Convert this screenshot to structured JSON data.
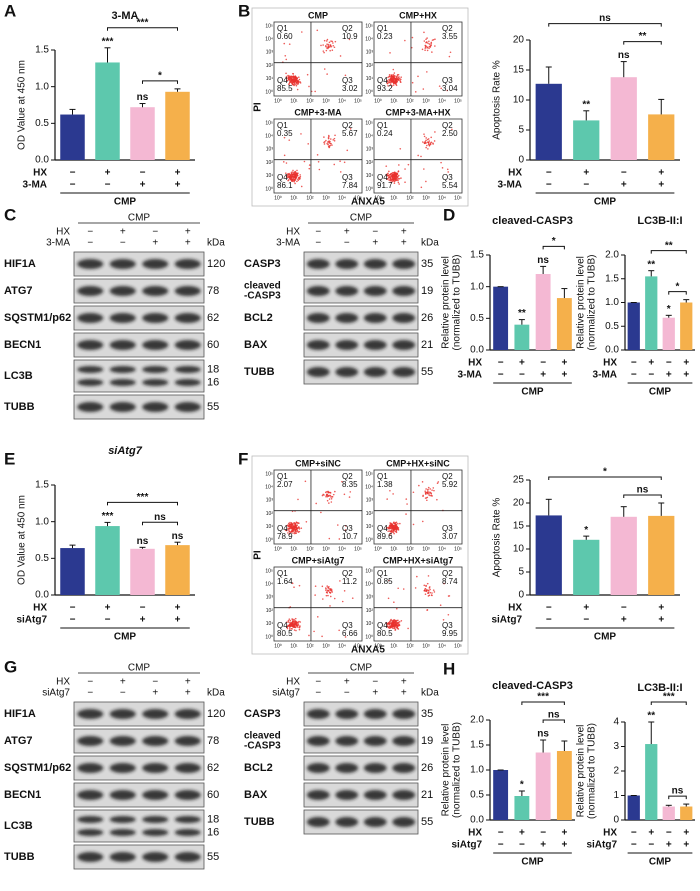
{
  "panel_labels": [
    "A",
    "B",
    "C",
    "D",
    "E",
    "F",
    "G",
    "H"
  ],
  "chart_data": [
    {
      "type": "bar",
      "title": "3-MA",
      "y_label": [
        "OD Value at 450 nm"
      ],
      "ylim": [
        0,
        1.5
      ],
      "yticks": [
        {
          "value": 0,
          "label": "0.0"
        },
        0.5,
        {
          "value": 1,
          "label": "1.0"
        },
        1.5
      ],
      "colors": [
        "#2b3990",
        "#5dc8ad",
        "#f4b8d3",
        "#f5b04b"
      ],
      "values": [
        0.62,
        1.33,
        0.72,
        0.93
      ],
      "errors": [
        0.07,
        0.2,
        0.05,
        0.04
      ],
      "bar_annotations": [
        null,
        "***",
        "ns",
        null
      ],
      "comparisons": [
        {
          "from": 2,
          "to": 3,
          "label": "*"
        },
        {
          "from": 1,
          "to": 3,
          "label": "***"
        }
      ],
      "conditions": [
        {
          "name": "HX",
          "signs": [
            "−",
            "+",
            "−",
            "+"
          ]
        },
        {
          "name": "3-MA",
          "signs": [
            "−",
            "−",
            "+",
            "+"
          ]
        }
      ],
      "group": "CMP"
    },
    {
      "type": "bar",
      "title": null,
      "y_label": [
        "Apoptosis Rate %"
      ],
      "ylim": [
        0,
        20
      ],
      "yticks": [
        0,
        5,
        10,
        15,
        20
      ],
      "colors": [
        "#2b3990",
        "#5dc8ad",
        "#f4b8d3",
        "#f5b04b"
      ],
      "values": [
        12.7,
        6.6,
        13.8,
        7.6
      ],
      "errors": [
        2.8,
        1.6,
        2.6,
        2.5
      ],
      "bar_annotations": [
        null,
        "**",
        "ns",
        null
      ],
      "comparisons": [
        {
          "from": 2,
          "to": 3,
          "label": "**"
        },
        {
          "from": 0,
          "to": 3,
          "label": "ns"
        }
      ],
      "conditions": [
        {
          "name": "HX",
          "signs": [
            "−",
            "+",
            "−",
            "+"
          ]
        },
        {
          "name": "3-MA",
          "signs": [
            "−",
            "−",
            "+",
            "+"
          ]
        }
      ],
      "group": "CMP"
    },
    {
      "type": "bar",
      "title": "cleaved-CASP3",
      "y_label": [
        "Relative protein level",
        "(normalized to TUBB)"
      ],
      "ylim": [
        0,
        1.5
      ],
      "yticks": [
        {
          "value": 0,
          "label": "0.0"
        },
        0.5,
        {
          "value": 1,
          "label": "1.0"
        },
        1.5
      ],
      "colors": [
        "#2b3990",
        "#5dc8ad",
        "#f4b8d3",
        "#f5b04b"
      ],
      "values": [
        1.0,
        0.4,
        1.2,
        0.82
      ],
      "errors": [
        0,
        0.08,
        0.12,
        0.15
      ],
      "bar_annotations": [
        null,
        "**",
        "ns",
        null
      ],
      "comparisons": [
        {
          "from": 2,
          "to": 3,
          "label": "*"
        }
      ],
      "conditions": [
        {
          "name": "HX",
          "signs": [
            "−",
            "+",
            "−",
            "+"
          ]
        },
        {
          "name": "3-MA",
          "signs": [
            "−",
            "−",
            "+",
            "+"
          ]
        }
      ],
      "group": "CMP"
    },
    {
      "type": "bar",
      "title": "LC3B-II:I",
      "y_label": [
        "Relative protein level",
        "(normalized to TUBB)"
      ],
      "ylim": [
        0,
        2
      ],
      "yticks": [
        {
          "value": 0,
          "label": "0.0"
        },
        0.5,
        {
          "value": 1,
          "label": "1.0"
        },
        1.5,
        {
          "value": 2,
          "label": "2.0"
        }
      ],
      "colors": [
        "#2b3990",
        "#5dc8ad",
        "#f4b8d3",
        "#f5b04b"
      ],
      "values": [
        1.0,
        1.55,
        0.68,
        1.0
      ],
      "errors": [
        0,
        0.12,
        0.05,
        0.06
      ],
      "bar_annotations": [
        null,
        "**",
        "*",
        null
      ],
      "comparisons": [
        {
          "from": 2,
          "to": 3,
          "label": "*"
        },
        {
          "from": 1,
          "to": 3,
          "label": "**"
        }
      ],
      "conditions": [
        {
          "name": "HX",
          "signs": [
            "−",
            "+",
            "−",
            "+"
          ]
        },
        {
          "name": "3-MA",
          "signs": [
            "−",
            "−",
            "+",
            "+"
          ]
        }
      ],
      "group": "CMP"
    },
    {
      "type": "bar",
      "title": "siAtg7",
      "y_label": [
        "OD Value at 450 nm"
      ],
      "ylim": [
        0,
        1.5
      ],
      "yticks": [
        {
          "value": 0,
          "label": "0.0"
        },
        0.5,
        {
          "value": 1,
          "label": "1.0"
        },
        1.5
      ],
      "colors": [
        "#2b3990",
        "#5dc8ad",
        "#f4b8d3",
        "#f5b04b"
      ],
      "values": [
        0.64,
        0.94,
        0.63,
        0.68
      ],
      "errors": [
        0.04,
        0.05,
        0.02,
        0.04
      ],
      "bar_annotations": [
        null,
        "***",
        "ns",
        "ns"
      ],
      "comparisons": [
        {
          "from": 2,
          "to": 3,
          "label": "ns"
        },
        {
          "from": 1,
          "to": 3,
          "label": "***"
        }
      ],
      "conditions": [
        {
          "name": "HX",
          "signs": [
            "−",
            "+",
            "−",
            "+"
          ]
        },
        {
          "name": "siAtg7",
          "signs": [
            "−",
            "−",
            "+",
            "+"
          ]
        }
      ],
      "group": "CMP"
    },
    {
      "type": "bar",
      "title": null,
      "y_label": [
        "Apoptosis Rate %"
      ],
      "ylim": [
        0,
        25
      ],
      "yticks": [
        0,
        5,
        10,
        15,
        20,
        25
      ],
      "colors": [
        "#2b3990",
        "#5dc8ad",
        "#f4b8d3",
        "#f5b04b"
      ],
      "values": [
        17.3,
        12.0,
        17.0,
        17.2
      ],
      "errors": [
        3.5,
        0.8,
        2.2,
        2.8
      ],
      "bar_annotations": [
        null,
        "*",
        null,
        null
      ],
      "comparisons": [
        {
          "from": 2,
          "to": 3,
          "label": "ns"
        },
        {
          "from": 0,
          "to": 3,
          "label": "*"
        }
      ],
      "conditions": [
        {
          "name": "HX",
          "signs": [
            "−",
            "+",
            "−",
            "+"
          ]
        },
        {
          "name": "siAtg7",
          "signs": [
            "−",
            "−",
            "+",
            "+"
          ]
        }
      ],
      "group": "CMP"
    },
    {
      "type": "bar",
      "title": "cleaved-CASP3",
      "y_label": [
        "Relative protein level",
        "(normalized to TUBB)"
      ],
      "ylim": [
        0,
        2
      ],
      "yticks": [
        {
          "value": 0,
          "label": "0.0"
        },
        0.5,
        {
          "value": 1,
          "label": "1.0"
        },
        1.5,
        {
          "value": 2,
          "label": "2.0"
        }
      ],
      "colors": [
        "#2b3990",
        "#5dc8ad",
        "#f4b8d3",
        "#f5b04b"
      ],
      "values": [
        1.0,
        0.48,
        1.35,
        1.38
      ],
      "errors": [
        0,
        0.1,
        0.25,
        0.2
      ],
      "bar_annotations": [
        null,
        "*",
        "ns",
        null
      ],
      "comparisons": [
        {
          "from": 2,
          "to": 3,
          "label": "ns"
        },
        {
          "from": 1,
          "to": 3,
          "label": "***"
        }
      ],
      "conditions": [
        {
          "name": "HX",
          "signs": [
            "−",
            "+",
            "−",
            "+"
          ]
        },
        {
          "name": "siAtg7",
          "signs": [
            "−",
            "−",
            "+",
            "+"
          ]
        }
      ],
      "group": "CMP"
    },
    {
      "type": "bar",
      "title": "LC3B-II:I",
      "y_label": [
        "Relative protein level",
        "(normalized to TUBB)"
      ],
      "ylim": [
        0,
        4
      ],
      "yticks": [
        0,
        1,
        2,
        3,
        4
      ],
      "colors": [
        "#2b3990",
        "#5dc8ad",
        "#f4b8d3",
        "#f5b04b"
      ],
      "values": [
        1.0,
        3.1,
        0.55,
        0.55
      ],
      "errors": [
        0,
        0.9,
        0.05,
        0.1
      ],
      "bar_annotations": [
        null,
        "**",
        null,
        null
      ],
      "comparisons": [
        {
          "from": 2,
          "to": 3,
          "label": "ns"
        },
        {
          "from": 1,
          "to": 3,
          "label": "***"
        }
      ],
      "conditions": [
        {
          "name": "HX",
          "signs": [
            "−",
            "+",
            "−",
            "+"
          ]
        },
        {
          "name": "siAtg7",
          "signs": [
            "−",
            "−",
            "+",
            "+"
          ]
        }
      ],
      "group": "CMP"
    }
  ],
  "flow_panels": [
    {
      "y_label": "PI",
      "x_label": "ANXA5",
      "axis_ticks": [
        "10⁰",
        "10¹",
        "10²",
        "10³",
        "10⁴",
        "10⁵"
      ],
      "plots": [
        {
          "title": "CMP",
          "quadrants": [
            {
              "name": "Q1",
              "value": "0.60"
            },
            {
              "name": "Q2",
              "value": "10.9"
            },
            {
              "name": "Q4",
              "value": "85.5"
            },
            {
              "name": "Q3",
              "value": "3.02"
            }
          ]
        },
        {
          "title": "CMP+HX",
          "quadrants": [
            {
              "name": "Q1",
              "value": "0.23"
            },
            {
              "name": "Q2",
              "value": "3.55"
            },
            {
              "name": "Q4",
              "value": "93.2"
            },
            {
              "name": "Q3",
              "value": "3.04"
            }
          ]
        },
        {
          "title": "CMP+3-MA",
          "quadrants": [
            {
              "name": "Q1",
              "value": "0.35"
            },
            {
              "name": "Q2",
              "value": "5.67"
            },
            {
              "name": "Q4",
              "value": "86.1"
            },
            {
              "name": "Q3",
              "value": "7.84"
            }
          ]
        },
        {
          "title": "CMP+3-MA+HX",
          "quadrants": [
            {
              "name": "Q1",
              "value": "0.24"
            },
            {
              "name": "Q2",
              "value": "2.50"
            },
            {
              "name": "Q4",
              "value": "91.7"
            },
            {
              "name": "Q3",
              "value": "5.54"
            }
          ]
        }
      ]
    },
    {
      "y_label": "PI",
      "x_label": "ANXA5",
      "axis_ticks": [
        "10⁰",
        "10¹",
        "10²",
        "10³",
        "10⁴",
        "10⁵"
      ],
      "plots": [
        {
          "title": "CMP+siNC",
          "quadrants": [
            {
              "name": "Q1",
              "value": "2.07"
            },
            {
              "name": "Q2",
              "value": "8.35"
            },
            {
              "name": "Q4",
              "value": "78.9"
            },
            {
              "name": "Q3",
              "value": "10.7"
            }
          ]
        },
        {
          "title": "CMP+HX+siNC",
          "quadrants": [
            {
              "name": "Q1",
              "value": "1.38"
            },
            {
              "name": "Q2",
              "value": "5.92"
            },
            {
              "name": "Q4",
              "value": "89.6"
            },
            {
              "name": "Q3",
              "value": "3.07"
            }
          ]
        },
        {
          "title": "CMP+siAtg7",
          "quadrants": [
            {
              "name": "Q1",
              "value": "1.64"
            },
            {
              "name": "Q2",
              "value": "11.2"
            },
            {
              "name": "Q4",
              "value": "80.5"
            },
            {
              "name": "Q3",
              "value": "6.66"
            }
          ]
        },
        {
          "title": "CMP+HX+siAtg7",
          "quadrants": [
            {
              "name": "Q1",
              "value": "0.85"
            },
            {
              "name": "Q2",
              "value": "8.74"
            },
            {
              "name": "Q4",
              "value": "80.5"
            },
            {
              "name": "Q3",
              "value": "9.95"
            }
          ]
        }
      ]
    }
  ],
  "blot_panels": [
    {
      "header": "CMP",
      "unit": "kDa",
      "conditions": [
        {
          "name": "HX",
          "signs": [
            "−",
            "+",
            "−",
            "+"
          ]
        },
        {
          "name": "3-MA",
          "signs": [
            "−",
            "−",
            "+",
            "+"
          ]
        }
      ],
      "blots": [
        {
          "rows": [
            {
              "label": [
                "HIF1A"
              ],
              "kda": [
                "120"
              ]
            },
            {
              "label": [
                "ATG7"
              ],
              "kda": [
                "78"
              ]
            },
            {
              "label": [
                "SQSTM1/p62"
              ],
              "kda": [
                "62"
              ]
            },
            {
              "label": [
                "BECN1"
              ],
              "kda": [
                "60"
              ]
            },
            {
              "label": [
                "LC3B"
              ],
              "kda": [
                "18",
                "16"
              ]
            },
            {
              "label": [
                "TUBB"
              ],
              "kda": [
                "55"
              ]
            }
          ]
        },
        {
          "rows": [
            {
              "label": [
                "CASP3"
              ],
              "kda": [
                "35"
              ]
            },
            {
              "label": [
                "cleaved",
                "-CASP3"
              ],
              "kda": [
                "19"
              ]
            },
            {
              "label": [
                "BCL2"
              ],
              "kda": [
                "26"
              ]
            },
            {
              "label": [
                "BAX"
              ],
              "kda": [
                "21"
              ]
            },
            {
              "label": [
                "TUBB"
              ],
              "kda": [
                "55"
              ]
            }
          ]
        }
      ]
    },
    {
      "header": "CMP",
      "unit": "kDa",
      "conditions": [
        {
          "name": "HX",
          "signs": [
            "−",
            "+",
            "−",
            "+"
          ]
        },
        {
          "name": "siAtg7",
          "signs": [
            "−",
            "−",
            "+",
            "+"
          ]
        }
      ],
      "blots": [
        {
          "rows": [
            {
              "label": [
                "HIF1A"
              ],
              "kda": [
                "120"
              ]
            },
            {
              "label": [
                "ATG7"
              ],
              "kda": [
                "78"
              ]
            },
            {
              "label": [
                "SQSTM1/p62"
              ],
              "kda": [
                "62"
              ]
            },
            {
              "label": [
                "BECN1"
              ],
              "kda": [
                "60"
              ]
            },
            {
              "label": [
                "LC3B"
              ],
              "kda": [
                "18",
                "16"
              ]
            },
            {
              "label": [
                "TUBB"
              ],
              "kda": [
                "55"
              ]
            }
          ]
        },
        {
          "rows": [
            {
              "label": [
                "CASP3"
              ],
              "kda": [
                "35"
              ]
            },
            {
              "label": [
                "cleaved",
                "-CASP3"
              ],
              "kda": [
                "19"
              ]
            },
            {
              "label": [
                "BCL2"
              ],
              "kda": [
                "26"
              ]
            },
            {
              "label": [
                "BAX"
              ],
              "kda": [
                "21"
              ]
            },
            {
              "label": [
                "TUBB"
              ],
              "kda": [
                "55"
              ]
            }
          ]
        }
      ]
    }
  ]
}
